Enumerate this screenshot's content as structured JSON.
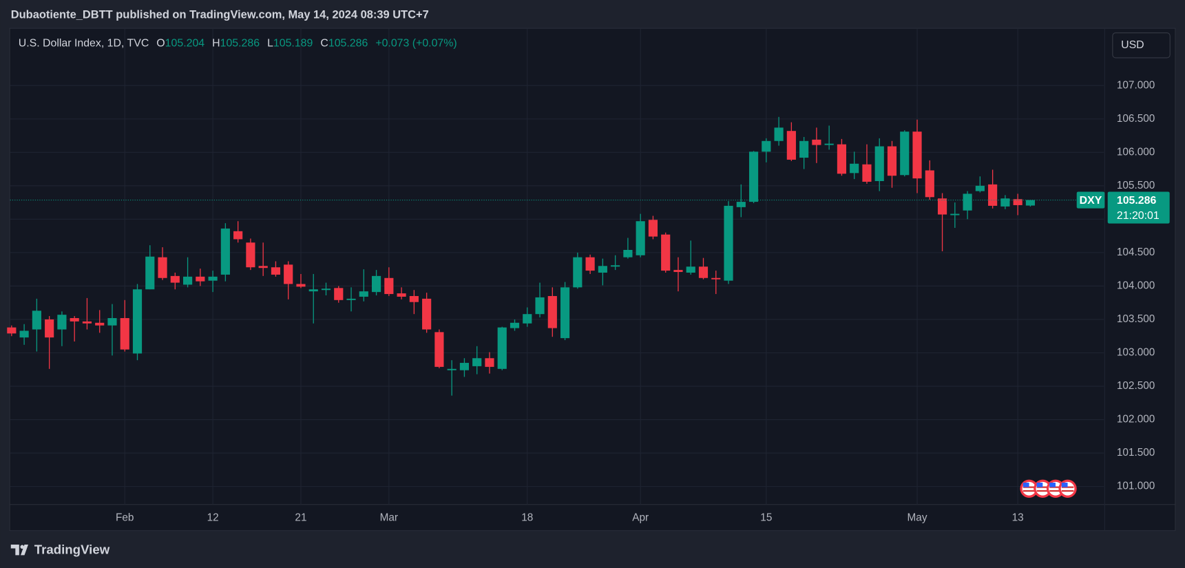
{
  "header": {
    "title": "Dubaotiente_DBTT published on TradingView.com, May 14, 2024 08:39 UTC+7"
  },
  "footer": {
    "brand": "TradingView"
  },
  "chart_data": {
    "type": "candlestick",
    "legend": {
      "symbol": "U.S. Dollar Index, 1D, TVC",
      "ohlc": [
        {
          "label": "O",
          "value": 105.204
        },
        {
          "label": "H",
          "value": 105.286
        },
        {
          "label": "L",
          "value": 105.189
        },
        {
          "label": "C",
          "value": 105.286
        }
      ],
      "change": "+0.073 (+0.07%)"
    },
    "currency_button": "USD",
    "price_line": {
      "symbol": "DXY",
      "value": 105.286,
      "countdown": "21:20:01"
    },
    "up_color": "#089981",
    "down_color": "#f23645",
    "categories": [
      null,
      null,
      null,
      null,
      null,
      null,
      null,
      null,
      null,
      "Feb",
      null,
      null,
      null,
      null,
      null,
      null,
      "12",
      null,
      null,
      null,
      null,
      null,
      null,
      "21",
      null,
      null,
      null,
      null,
      null,
      null,
      "Mar",
      null,
      null,
      null,
      null,
      null,
      null,
      null,
      null,
      null,
      null,
      "18",
      null,
      null,
      null,
      null,
      null,
      null,
      null,
      null,
      "Apr",
      null,
      null,
      null,
      null,
      null,
      null,
      null,
      null,
      null,
      "15",
      null,
      null,
      null,
      null,
      null,
      null,
      null,
      null,
      null,
      null,
      null,
      "May",
      null,
      null,
      null,
      null,
      null,
      null,
      null,
      "13",
      null
    ],
    "open": [
      103.38,
      103.23,
      103.35,
      103.5,
      103.35,
      103.52,
      103.47,
      103.45,
      103.41,
      103.52,
      102.99,
      103.95,
      104.43,
      104.15,
      104.02,
      104.14,
      104.08,
      104.17,
      104.82,
      104.65,
      104.3,
      104.28,
      104.32,
      104.03,
      103.92,
      103.94,
      103.97,
      103.79,
      103.84,
      103.91,
      104.12,
      103.89,
      103.85,
      103.81,
      103.31,
      102.74,
      102.74,
      102.8,
      102.92,
      102.76,
      103.37,
      103.44,
      103.58,
      103.85,
      103.22,
      103.98,
      104.43,
      104.2,
      104.29,
      104.43,
      104.46,
      104.99,
      104.77,
      104.24,
      104.2,
      104.29,
      104.12,
      104.08,
      105.18,
      105.26,
      106.01,
      106.17,
      106.32,
      105.92,
      106.19,
      106.11,
      106.12,
      105.69,
      105.82,
      105.57,
      106.09,
      105.66,
      106.31,
      105.73,
      105.31,
      105.06,
      105.13,
      105.42,
      105.52,
      105.19,
      105.3,
      105.204
    ],
    "high": [
      103.41,
      103.43,
      103.81,
      103.55,
      103.62,
      103.55,
      103.82,
      103.64,
      103.73,
      103.79,
      104.03,
      104.61,
      104.58,
      104.2,
      104.43,
      104.26,
      104.23,
      104.94,
      104.97,
      104.71,
      104.65,
      104.37,
      104.37,
      104.18,
      104.18,
      104.05,
      104.0,
      103.98,
      104.25,
      104.24,
      104.28,
      103.98,
      103.94,
      103.9,
      103.35,
      102.89,
      102.92,
      103.1,
      103.01,
      103.39,
      103.5,
      103.68,
      104.05,
      103.98,
      104.06,
      104.5,
      104.47,
      104.41,
      104.46,
      104.72,
      105.08,
      105.05,
      104.8,
      104.43,
      104.68,
      104.42,
      104.23,
      105.27,
      105.52,
      106.02,
      106.21,
      106.53,
      106.45,
      106.23,
      106.37,
      106.4,
      106.2,
      106.01,
      106.12,
      106.21,
      106.17,
      106.33,
      106.49,
      105.88,
      105.39,
      105.25,
      105.42,
      105.64,
      105.74,
      105.36,
      105.38,
      105.286
    ],
    "low": [
      103.25,
      103.12,
      103.02,
      102.76,
      103.1,
      103.17,
      103.35,
      103.3,
      102.96,
      103.02,
      102.89,
      103.95,
      104.09,
      103.95,
      103.98,
      104.0,
      103.91,
      104.07,
      104.65,
      104.24,
      104.15,
      104.14,
      103.8,
      103.97,
      103.44,
      103.86,
      103.75,
      103.62,
      103.77,
      103.86,
      103.85,
      103.8,
      103.58,
      103.3,
      102.77,
      102.36,
      102.64,
      102.68,
      102.69,
      102.74,
      103.33,
      103.39,
      103.53,
      103.24,
      103.19,
      103.96,
      104.18,
      104.01,
      104.24,
      104.41,
      104.43,
      104.7,
      104.2,
      103.92,
      104.17,
      104.1,
      103.88,
      104.03,
      105.03,
      105.24,
      105.85,
      106.1,
      105.87,
      105.75,
      105.84,
      106.04,
      105.65,
      105.6,
      105.53,
      105.42,
      105.47,
      105.64,
      105.39,
      105.29,
      104.52,
      104.87,
      105.0,
      105.4,
      105.16,
      105.15,
      105.06,
      105.189
    ],
    "close": [
      103.29,
      103.33,
      103.63,
      103.23,
      103.57,
      103.47,
      103.44,
      103.41,
      103.52,
      103.05,
      103.95,
      104.44,
      104.12,
      104.05,
      104.14,
      104.07,
      104.14,
      104.86,
      104.7,
      104.28,
      104.27,
      104.17,
      104.03,
      103.99,
      103.95,
      103.96,
      103.79,
      103.81,
      103.92,
      104.15,
      103.88,
      103.84,
      103.76,
      103.35,
      102.79,
      102.76,
      102.85,
      102.92,
      102.79,
      103.38,
      103.45,
      103.58,
      103.83,
      103.37,
      103.98,
      104.43,
      104.23,
      104.3,
      104.31,
      104.54,
      104.97,
      104.74,
      104.23,
      104.21,
      104.29,
      104.12,
      104.1,
      105.2,
      105.26,
      106.01,
      106.17,
      106.37,
      105.89,
      106.17,
      106.11,
      106.13,
      105.68,
      105.83,
      105.56,
      106.09,
      105.65,
      106.31,
      105.61,
      105.33,
      105.07,
      105.08,
      105.38,
      105.5,
      105.2,
      105.31,
      105.21,
      105.286
    ],
    "ylim": [
      100.73,
      107.85
    ],
    "yticks": [
      {
        "value": 101,
        "label": "101.000"
      },
      {
        "value": 101.5,
        "label": "101.500"
      },
      {
        "value": 102,
        "label": "102.000"
      },
      {
        "value": 102.5,
        "label": "102.500"
      },
      {
        "value": 103,
        "label": "103.000"
      },
      {
        "value": 103.5,
        "label": "103.500"
      },
      {
        "value": 104,
        "label": "104.000"
      },
      {
        "value": 104.5,
        "label": "104.500"
      },
      {
        "value": 105,
        "label": "105.000"
      },
      {
        "value": 105.5,
        "label": "105.500"
      },
      {
        "value": 106,
        "label": "106.000"
      },
      {
        "value": 106.5,
        "label": "106.500"
      },
      {
        "value": 107,
        "label": "107.000"
      }
    ],
    "grid": true
  }
}
